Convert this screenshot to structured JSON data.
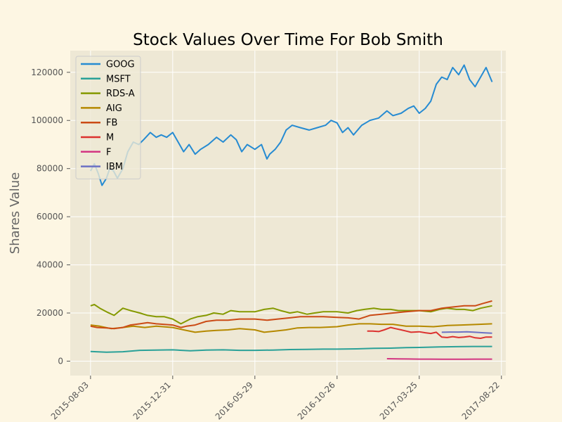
{
  "chart_data": {
    "type": "line",
    "title": "Stock Values Over Time For Bob Smith",
    "xlabel": "",
    "ylabel": "Shares Value",
    "x_type": "date",
    "xlim": [
      "2015-06-27",
      "2017-08-30"
    ],
    "ylim": [
      -6000,
      129000
    ],
    "x_ticks": [
      "2015-08-03",
      "2015-12-31",
      "2016-05-29",
      "2016-10-26",
      "2017-03-25",
      "2017-08-22"
    ],
    "y_ticks": [
      0,
      20000,
      40000,
      60000,
      80000,
      100000,
      120000
    ],
    "grid": true,
    "legend_position": "upper-left",
    "colors": {
      "background": "#fdf6e3",
      "plot_background": "#eee8d5",
      "grid": "#ffffff"
    },
    "series": [
      {
        "name": "GOOG",
        "color": "#268bd2",
        "x": [
          "2015-08-03",
          "2015-08-10",
          "2015-08-17",
          "2015-08-24",
          "2015-09-01",
          "2015-09-07",
          "2015-09-14",
          "2015-09-21",
          "2015-10-01",
          "2015-10-10",
          "2015-10-20",
          "2015-10-30",
          "2015-11-08",
          "2015-11-20",
          "2015-12-01",
          "2015-12-10",
          "2015-12-20",
          "2015-12-31",
          "2016-01-10",
          "2016-01-20",
          "2016-01-30",
          "2016-02-10",
          "2016-02-20",
          "2016-03-05",
          "2016-03-20",
          "2016-04-01",
          "2016-04-15",
          "2016-04-25",
          "2016-05-05",
          "2016-05-15",
          "2016-05-29",
          "2016-06-10",
          "2016-06-20",
          "2016-06-25",
          "2016-07-05",
          "2016-07-15",
          "2016-07-25",
          "2016-08-05",
          "2016-08-20",
          "2016-09-05",
          "2016-09-20",
          "2016-10-05",
          "2016-10-15",
          "2016-10-26",
          "2016-11-05",
          "2016-11-15",
          "2016-11-25",
          "2016-12-10",
          "2016-12-25",
          "2017-01-10",
          "2017-01-25",
          "2017-02-05",
          "2017-02-20",
          "2017-03-05",
          "2017-03-15",
          "2017-03-25",
          "2017-04-05",
          "2017-04-15",
          "2017-04-25",
          "2017-05-05",
          "2017-05-15",
          "2017-05-25",
          "2017-06-05",
          "2017-06-15",
          "2017-06-25",
          "2017-07-05",
          "2017-07-15",
          "2017-07-25",
          "2017-08-05"
        ],
        "values": [
          79000,
          82000,
          78000,
          73000,
          76000,
          80000,
          79000,
          76000,
          80000,
          87000,
          91000,
          90000,
          92000,
          95000,
          93000,
          94000,
          93000,
          95000,
          91000,
          87000,
          90000,
          86000,
          88000,
          90000,
          93000,
          91000,
          94000,
          92000,
          87000,
          90000,
          88000,
          90000,
          84000,
          86000,
          88000,
          91000,
          96000,
          98000,
          97000,
          96000,
          97000,
          98000,
          100000,
          99000,
          95000,
          97000,
          94000,
          98000,
          100000,
          101000,
          104000,
          102000,
          103000,
          105000,
          106000,
          103000,
          105000,
          108000,
          115000,
          118000,
          117000,
          122000,
          119000,
          123000,
          117000,
          114000,
          118000,
          122000,
          116000
        ]
      },
      {
        "name": "MSFT",
        "color": "#2aa198",
        "x": [
          "2015-08-03",
          "2015-09-01",
          "2015-10-01",
          "2015-11-01",
          "2015-12-01",
          "2015-12-31",
          "2016-02-01",
          "2016-03-01",
          "2016-04-01",
          "2016-05-01",
          "2016-05-29",
          "2016-07-01",
          "2016-08-01",
          "2016-09-01",
          "2016-10-01",
          "2016-10-26",
          "2016-12-01",
          "2017-01-01",
          "2017-02-01",
          "2017-03-01",
          "2017-03-25",
          "2017-05-01",
          "2017-06-01",
          "2017-07-01",
          "2017-08-05"
        ],
        "values": [
          4000,
          3700,
          3900,
          4500,
          4600,
          4700,
          4300,
          4600,
          4700,
          4500,
          4500,
          4600,
          4800,
          4900,
          5000,
          5000,
          5100,
          5300,
          5400,
          5600,
          5700,
          5900,
          6000,
          6100,
          6100
        ]
      },
      {
        "name": "RDS-A",
        "color": "#859900",
        "x": [
          "2015-08-03",
          "2015-08-10",
          "2015-08-20",
          "2015-09-01",
          "2015-09-15",
          "2015-10-01",
          "2015-10-15",
          "2015-11-01",
          "2015-11-15",
          "2015-12-01",
          "2015-12-15",
          "2015-12-31",
          "2016-01-15",
          "2016-02-01",
          "2016-02-15",
          "2016-03-01",
          "2016-03-15",
          "2016-04-01",
          "2016-04-15",
          "2016-05-01",
          "2016-05-29",
          "2016-06-15",
          "2016-07-01",
          "2016-07-15",
          "2016-08-01",
          "2016-08-15",
          "2016-09-01",
          "2016-09-15",
          "2016-10-01",
          "2016-10-26",
          "2016-11-15",
          "2016-12-01",
          "2016-12-15",
          "2017-01-01",
          "2017-01-15",
          "2017-02-01",
          "2017-02-15",
          "2017-03-01",
          "2017-03-25",
          "2017-04-15",
          "2017-05-01",
          "2017-05-15",
          "2017-06-01",
          "2017-06-15",
          "2017-07-01",
          "2017-07-15",
          "2017-08-05"
        ],
        "values": [
          23000,
          23500,
          22000,
          20500,
          19000,
          22000,
          21000,
          20000,
          19000,
          18500,
          18500,
          17500,
          15500,
          17500,
          18500,
          19000,
          20000,
          19500,
          21000,
          20500,
          20500,
          21500,
          22000,
          21000,
          20000,
          20500,
          19500,
          20000,
          20500,
          20500,
          20000,
          21000,
          21500,
          22000,
          21500,
          21500,
          21000,
          21000,
          21000,
          20500,
          21500,
          22000,
          21500,
          21500,
          21000,
          22000,
          23000
        ]
      },
      {
        "name": "AIG",
        "color": "#b58900",
        "x": [
          "2015-08-03",
          "2015-08-20",
          "2015-09-10",
          "2015-10-01",
          "2015-10-20",
          "2015-11-10",
          "2015-12-01",
          "2015-12-31",
          "2016-01-20",
          "2016-02-10",
          "2016-03-01",
          "2016-03-20",
          "2016-04-10",
          "2016-05-01",
          "2016-05-29",
          "2016-06-15",
          "2016-07-05",
          "2016-07-25",
          "2016-08-15",
          "2016-09-05",
          "2016-09-25",
          "2016-10-26",
          "2016-11-15",
          "2016-12-05",
          "2016-12-25",
          "2017-01-15",
          "2017-02-05",
          "2017-03-01",
          "2017-03-25",
          "2017-04-20",
          "2017-05-15",
          "2017-06-10",
          "2017-07-05",
          "2017-08-05"
        ],
        "values": [
          15000,
          14500,
          13500,
          14000,
          14500,
          14000,
          14500,
          14000,
          13000,
          12000,
          12500,
          12800,
          13000,
          13500,
          13000,
          12000,
          12500,
          13000,
          13800,
          14000,
          14000,
          14300,
          15000,
          15500,
          15500,
          15300,
          15300,
          14500,
          14500,
          14300,
          14800,
          15000,
          15200,
          15500
        ]
      },
      {
        "name": "FB",
        "color": "#cb4b16",
        "x": [
          "2015-08-03",
          "2015-08-15",
          "2015-09-01",
          "2015-09-15",
          "2015-10-01",
          "2015-10-15",
          "2015-11-01",
          "2015-11-15",
          "2015-12-01",
          "2015-12-31",
          "2016-01-15",
          "2016-01-25",
          "2016-02-10",
          "2016-03-01",
          "2016-03-20",
          "2016-04-10",
          "2016-05-01",
          "2016-05-29",
          "2016-06-20",
          "2016-07-10",
          "2016-08-01",
          "2016-08-20",
          "2016-09-10",
          "2016-10-01",
          "2016-10-26",
          "2016-11-15",
          "2016-12-05",
          "2016-12-25",
          "2017-01-15",
          "2017-02-05",
          "2017-03-01",
          "2017-03-25",
          "2017-04-15",
          "2017-05-05",
          "2017-05-25",
          "2017-06-15",
          "2017-07-05",
          "2017-07-20",
          "2017-08-05"
        ],
        "values": [
          14500,
          14000,
          13800,
          13500,
          14000,
          15000,
          15500,
          16000,
          15500,
          15000,
          14000,
          14500,
          15000,
          16500,
          17000,
          17000,
          17500,
          17500,
          17000,
          17500,
          18000,
          18500,
          18500,
          18500,
          18200,
          18000,
          17500,
          19000,
          19500,
          20000,
          20500,
          21000,
          21000,
          22000,
          22500,
          23000,
          23000,
          24000,
          25000
        ]
      },
      {
        "name": "M",
        "color": "#dc322f",
        "x": [
          "2016-12-20",
          "2016-12-30",
          "2017-01-10",
          "2017-01-20",
          "2017-02-01",
          "2017-02-10",
          "2017-02-20",
          "2017-03-01",
          "2017-03-10",
          "2017-03-25",
          "2017-04-05",
          "2017-04-15",
          "2017-04-25",
          "2017-05-05",
          "2017-05-15",
          "2017-05-25",
          "2017-06-05",
          "2017-06-15",
          "2017-06-25",
          "2017-07-05",
          "2017-07-15",
          "2017-07-25",
          "2017-08-05"
        ],
        "values": [
          12500,
          12500,
          12300,
          13000,
          14000,
          13500,
          13000,
          12500,
          12000,
          12200,
          11800,
          11500,
          12000,
          10000,
          9800,
          10200,
          9800,
          10000,
          10300,
          9700,
          9500,
          10000,
          10000
        ]
      },
      {
        "name": "F",
        "color": "#d33682",
        "x": [
          "2017-01-25",
          "2017-02-15",
          "2017-03-05",
          "2017-03-25",
          "2017-04-15",
          "2017-05-05",
          "2017-05-25",
          "2017-06-15",
          "2017-07-05",
          "2017-07-25",
          "2017-08-05"
        ],
        "values": [
          1000,
          950,
          900,
          850,
          850,
          800,
          800,
          800,
          850,
          850,
          850
        ]
      },
      {
        "name": "IBM",
        "color": "#6c71c4",
        "x": [
          "2017-05-05",
          "2017-05-20",
          "2017-06-05",
          "2017-06-20",
          "2017-07-05",
          "2017-07-20",
          "2017-08-05"
        ],
        "values": [
          12000,
          12100,
          12100,
          12200,
          12000,
          11800,
          11600
        ]
      }
    ]
  }
}
